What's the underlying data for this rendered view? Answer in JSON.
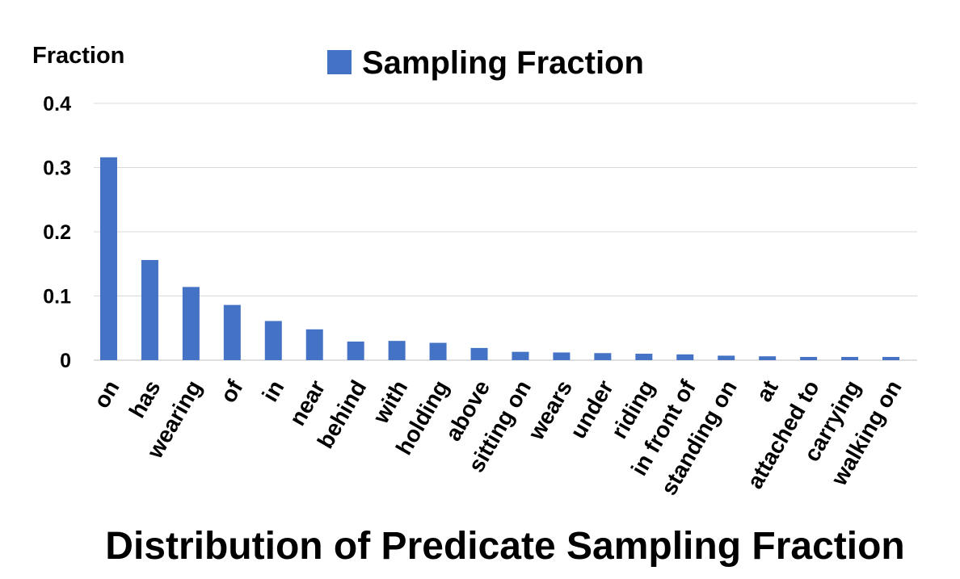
{
  "chart_data": {
    "type": "bar",
    "title": "Distribution of Predicate Sampling Fraction",
    "ylabel": "Fraction",
    "xlabel": "",
    "ylim": [
      0,
      0.4
    ],
    "yticks": [
      0,
      0.1,
      0.2,
      0.3,
      0.4
    ],
    "ytick_labels": [
      "0",
      "0.1",
      "0.2",
      "0.3",
      "0.4"
    ],
    "grid": true,
    "legend_position": "top-center",
    "categories": [
      "on",
      "has",
      "wearing",
      "of",
      "in",
      "near",
      "behind",
      "with",
      "holding",
      "above",
      "sitting on",
      "wears",
      "under",
      "riding",
      "in front of",
      "standing on",
      "at",
      "attached to",
      "carrying",
      "walking on"
    ],
    "series": [
      {
        "name": "Sampling Fraction",
        "color": "#4472C4",
        "values": [
          0.316,
          0.156,
          0.114,
          0.086,
          0.061,
          0.048,
          0.029,
          0.03,
          0.027,
          0.019,
          0.013,
          0.012,
          0.011,
          0.01,
          0.009,
          0.007,
          0.006,
          0.005,
          0.005,
          0.005
        ]
      }
    ]
  }
}
